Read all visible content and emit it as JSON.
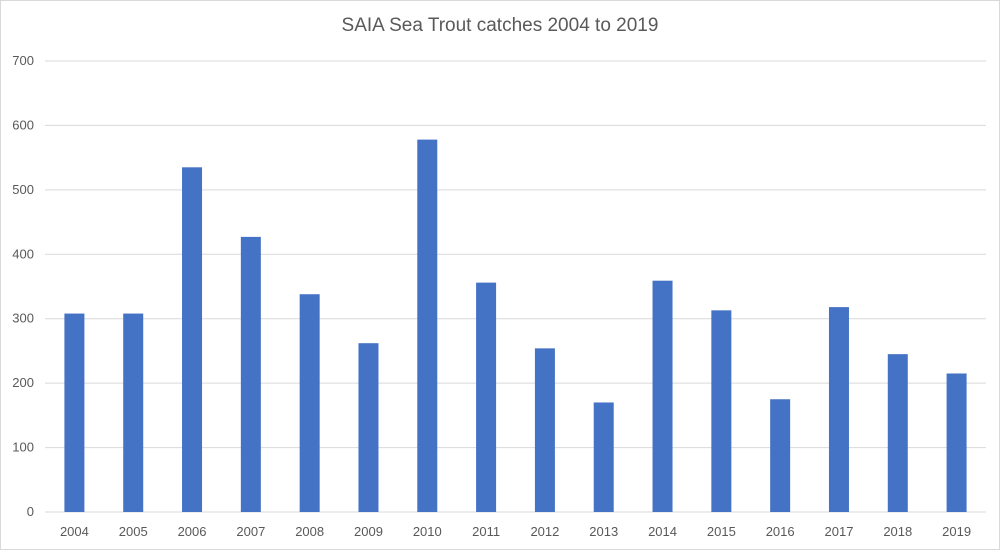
{
  "chart_data": {
    "type": "bar",
    "title": "SAIA Sea Trout catches 2004 to 2019",
    "xlabel": "",
    "ylabel": "",
    "categories": [
      "2004",
      "2005",
      "2006",
      "2007",
      "2008",
      "2009",
      "2010",
      "2011",
      "2012",
      "2013",
      "2014",
      "2015",
      "2016",
      "2017",
      "2018",
      "2019"
    ],
    "series": [
      {
        "values": [
          308,
          308,
          535,
          427,
          338,
          262,
          578,
          356,
          254,
          170,
          359,
          313,
          175,
          318,
          245,
          215
        ]
      }
    ],
    "ylim": [
      0,
      700
    ],
    "yticks": [
      "0",
      "100",
      "200",
      "300",
      "400",
      "500",
      "600",
      "700"
    ],
    "grid": true,
    "legend": "none",
    "colors": {
      "bar": "#4472c4",
      "grid": "#d9d9d9",
      "text": "#595959"
    }
  }
}
